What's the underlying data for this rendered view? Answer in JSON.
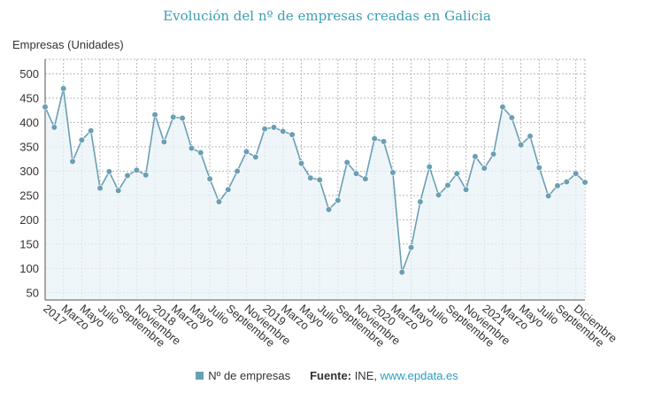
{
  "colors": {
    "series": "#6a9fb5",
    "fill": "#eaf3f8",
    "grid": "#b8b8b8",
    "axis": "#555555",
    "title": "#3aa0b5",
    "link": "#2a9fc0"
  },
  "legend": {
    "series_label": "Nº de empresas",
    "source_label": "Fuente:",
    "source_text": "INE,",
    "source_link": "www.epdata.es"
  },
  "chart_data": {
    "type": "line",
    "title": "Evolución del nº de empresas creadas en Galicia",
    "ylabel": "Empresas (Unidades)",
    "xlabel": "",
    "ylim": [
      35,
      530
    ],
    "yticks": [
      50,
      100,
      150,
      200,
      250,
      300,
      350,
      400,
      450,
      500
    ],
    "grid": true,
    "legend_position": "bottom",
    "x_ticks": [
      {
        "index": 0,
        "label": "2017"
      },
      {
        "index": 2,
        "label": "Marzo"
      },
      {
        "index": 4,
        "label": "Mayo"
      },
      {
        "index": 6,
        "label": "Julio"
      },
      {
        "index": 8,
        "label": "Septiembre"
      },
      {
        "index": 10,
        "label": "Noviembre"
      },
      {
        "index": 12,
        "label": "2018"
      },
      {
        "index": 14,
        "label": "Marzo"
      },
      {
        "index": 16,
        "label": "Mayo"
      },
      {
        "index": 18,
        "label": "Julio"
      },
      {
        "index": 20,
        "label": "Septiembre"
      },
      {
        "index": 22,
        "label": "Noviembre"
      },
      {
        "index": 24,
        "label": "2019"
      },
      {
        "index": 26,
        "label": "Marzo"
      },
      {
        "index": 28,
        "label": "Mayo"
      },
      {
        "index": 30,
        "label": "Julio"
      },
      {
        "index": 32,
        "label": "Septiembre"
      },
      {
        "index": 34,
        "label": "Noviembre"
      },
      {
        "index": 36,
        "label": "2020"
      },
      {
        "index": 38,
        "label": "Marzo"
      },
      {
        "index": 40,
        "label": "Mayo"
      },
      {
        "index": 42,
        "label": "Julio"
      },
      {
        "index": 44,
        "label": "Septiembre"
      },
      {
        "index": 46,
        "label": "Noviembre"
      },
      {
        "index": 48,
        "label": "2021"
      },
      {
        "index": 50,
        "label": "Marzo"
      },
      {
        "index": 52,
        "label": "Mayo"
      },
      {
        "index": 54,
        "label": "Julio"
      },
      {
        "index": 56,
        "label": "Septiembre"
      },
      {
        "index": 58,
        "label": "Diciembre"
      }
    ],
    "series": [
      {
        "name": "Nº de empresas",
        "values": [
          432,
          390,
          470,
          320,
          364,
          383,
          265,
          299,
          260,
          291,
          302,
          292,
          416,
          360,
          411,
          409,
          347,
          338,
          284,
          237,
          262,
          300,
          340,
          329,
          387,
          390,
          382,
          375,
          316,
          286,
          282,
          221,
          240,
          318,
          295,
          284,
          367,
          361,
          297,
          92,
          143,
          237,
          309,
          251,
          271,
          295,
          262,
          330,
          306,
          335,
          432,
          410,
          354,
          372,
          307,
          249,
          270,
          278,
          295,
          277
        ]
      }
    ]
  }
}
